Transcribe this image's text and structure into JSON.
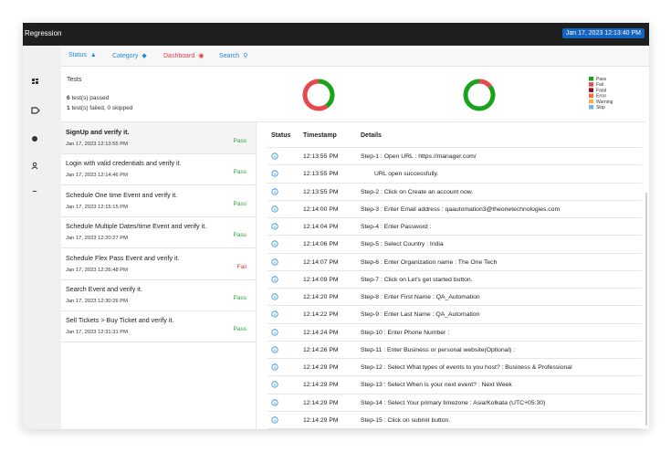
{
  "header": {
    "title": "Regression",
    "timestamp": "Jan 17, 2023 12:13:40 PM"
  },
  "nav": [
    "Status",
    "Category",
    "Dashboard",
    "Search"
  ],
  "dashboard": {
    "title": "Tests",
    "summary": {
      "passed": 6,
      "passed_text": "test(s) passed",
      "failed": 1,
      "failed_text": "test(s) failed,",
      "skipped": 0,
      "skipped_text": "skipped"
    },
    "step_chart": {
      "pass": 40,
      "fail": 60
    },
    "legend": [
      {
        "name": "Pass",
        "color": "#1aa31a"
      },
      {
        "name": "Fail",
        "color": "#e8474d"
      },
      {
        "name": "Fatal",
        "color": "#8b1010"
      },
      {
        "name": "Error",
        "color": "#ff6a3d"
      },
      {
        "name": "Warning",
        "color": "#f5b04a"
      },
      {
        "name": "Skip",
        "color": "#6fb4e8"
      }
    ]
  },
  "tests": [
    {
      "name": "SignUp and verify it.",
      "time": "Jan 17, 2023 12:13:55 PM",
      "status": "Pass"
    },
    {
      "name": "Login with valid credentials and verify it.",
      "time": "Jan 17, 2023 12:14:46 PM",
      "status": "Pass"
    },
    {
      "name": "Schedule One time Event and verify it.",
      "time": "Jan 17, 2023 12:15:15 PM",
      "status": "Pass"
    },
    {
      "name": "Schedule Multiple Dates/time Event and verify it.",
      "time": "Jan 17, 2023 12:20:27 PM",
      "status": "Pass"
    },
    {
      "name": "Schedule Flex Pass Event and verify it.",
      "time": "Jan 17, 2023 12:26:48 PM",
      "status": "Fail"
    },
    {
      "name": "Search Event and verify it.",
      "time": "Jan 17, 2023 12:30:26 PM",
      "status": "Pass"
    },
    {
      "name": "Sell Tickets > Buy Ticket and verify it.",
      "time": "Jan 17, 2023 12:31:31 PM",
      "status": "Pass"
    }
  ],
  "steps": {
    "columns": [
      "Status",
      "Timestamp",
      "Details"
    ],
    "rows": [
      {
        "time": "12:13:55 PM",
        "detail": "Step-1 : Open URL : https://manager.com/"
      },
      {
        "time": "12:13:55 PM",
        "detail": "URL open successfully."
      },
      {
        "time": "12:13:55 PM",
        "detail": "Step-2 : Click on Create an account now."
      },
      {
        "time": "12:14:00 PM",
        "detail": "Step-3 : Enter Email address : qaautomation3@theonetechnologies.com"
      },
      {
        "time": "12:14:04 PM",
        "detail": "Step-4 : Enter Password :"
      },
      {
        "time": "12:14:06 PM",
        "detail": "Step-5 : Select Country : India"
      },
      {
        "time": "12:14:07 PM",
        "detail": "Step-6 : Enter Organization name : The One Tech"
      },
      {
        "time": "12:14:09 PM",
        "detail": "Step-7 : Click on Let's get started button."
      },
      {
        "time": "12:14:20 PM",
        "detail": "Step-8 : Enter First Name : QA_Automation"
      },
      {
        "time": "12:14:22 PM",
        "detail": "Step-9 : Enter Last Name : QA_Automation"
      },
      {
        "time": "12:14:24 PM",
        "detail": "Step-10 : Enter Phone Number :"
      },
      {
        "time": "12:14:26 PM",
        "detail": "Step-11 : Enter Business or personal website(Optional) :"
      },
      {
        "time": "12:14:29 PM",
        "detail": "Step-12 : Select What types of events to you host? : Business & Professional"
      },
      {
        "time": "12:14:29 PM",
        "detail": "Step-13 : Select When is your next event? : Next Week"
      },
      {
        "time": "12:14:29 PM",
        "detail": "Step-14 : Select Your primary timezone : Asia/Kolkata (UTC+05:30)"
      },
      {
        "time": "12:14:29 PM",
        "detail": "Step-15 : Click on submit button."
      }
    ]
  }
}
